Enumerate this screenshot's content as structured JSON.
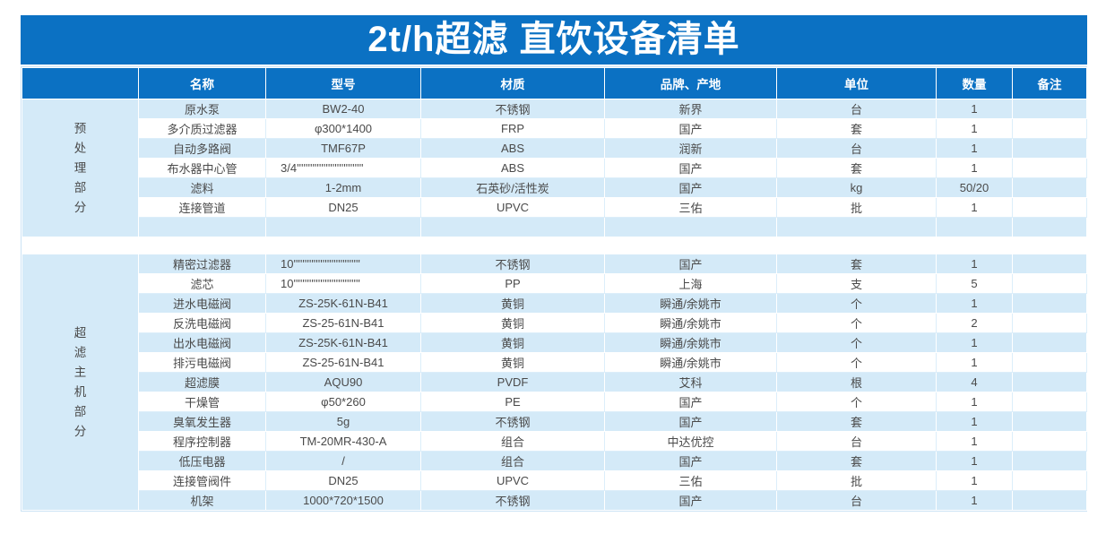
{
  "title": "2t/h超滤 直饮设备清单",
  "columns": [
    "名称",
    "型号",
    "材质",
    "品牌、产地",
    "单位",
    "数量",
    "备注"
  ],
  "colors": {
    "header_blue": "#0B71C3",
    "row_light_blue": "#D4EAF8",
    "row_white": "#FFFFFF",
    "text_gray": "#4A4A4A",
    "header_text": "#FFFFFF"
  },
  "sections": [
    {
      "label": "预处理部分",
      "rows": [
        [
          "原水泵",
          "BW2-40",
          "不锈钢",
          "新界",
          "台",
          "1",
          ""
        ],
        [
          "多介质过滤器",
          "φ300*1400",
          "FRP",
          "国产",
          "套",
          "1",
          ""
        ],
        [
          "自动多路阀",
          "TMF67P",
          "ABS",
          "润新",
          "台",
          "1",
          ""
        ],
        [
          "布水器中心管",
          "3/4''''''''''''''''''''''''''''''",
          "ABS",
          "国产",
          "套",
          "1",
          ""
        ],
        [
          "滤料",
          "1-2mm",
          "石英砂/活性炭",
          "国产",
          "kg",
          "50/20",
          ""
        ],
        [
          "连接管道",
          "DN25",
          "UPVC",
          "三佑",
          "批",
          "1",
          ""
        ],
        [
          "",
          "",
          "",
          "",
          "",
          "",
          ""
        ]
      ]
    },
    {
      "label": "超滤主机部分",
      "rows": [
        [
          "精密过滤器",
          "10''''''''''''''''''''''''''''''",
          "不锈钢",
          "国产",
          "套",
          "1",
          ""
        ],
        [
          "滤芯",
          "10''''''''''''''''''''''''''''''",
          "PP",
          "上海",
          "支",
          "5",
          ""
        ],
        [
          "进水电磁阀",
          "ZS-25K-61N-B41",
          "黄铜",
          "瞬通/余姚市",
          "个",
          "1",
          ""
        ],
        [
          "反洗电磁阀",
          "ZS-25-61N-B41",
          "黄铜",
          "瞬通/余姚市",
          "个",
          "2",
          ""
        ],
        [
          "出水电磁阀",
          "ZS-25K-61N-B41",
          "黄铜",
          "瞬通/余姚市",
          "个",
          "1",
          ""
        ],
        [
          "排污电磁阀",
          "ZS-25-61N-B41",
          "黄铜",
          "瞬通/余姚市",
          "个",
          "1",
          ""
        ],
        [
          "超滤膜",
          "AQU90",
          "PVDF",
          "艾科",
          "根",
          "4",
          ""
        ],
        [
          "干燥管",
          "φ50*260",
          "PE",
          "国产",
          "个",
          "1",
          ""
        ],
        [
          "臭氧发生器",
          "5g",
          "不锈钢",
          "国产",
          "套",
          "1",
          ""
        ],
        [
          "程序控制器",
          "TM-20MR-430-A",
          "组合",
          "中达优控",
          "台",
          "1",
          ""
        ],
        [
          "低压电器",
          "/",
          "组合",
          "国产",
          "套",
          "1",
          ""
        ],
        [
          "连接管阀件",
          "DN25",
          "UPVC",
          "三佑",
          "批",
          "1",
          ""
        ],
        [
          "机架",
          "1000*720*1500",
          "不锈钢",
          "国产",
          "台",
          "1",
          ""
        ]
      ]
    }
  ]
}
